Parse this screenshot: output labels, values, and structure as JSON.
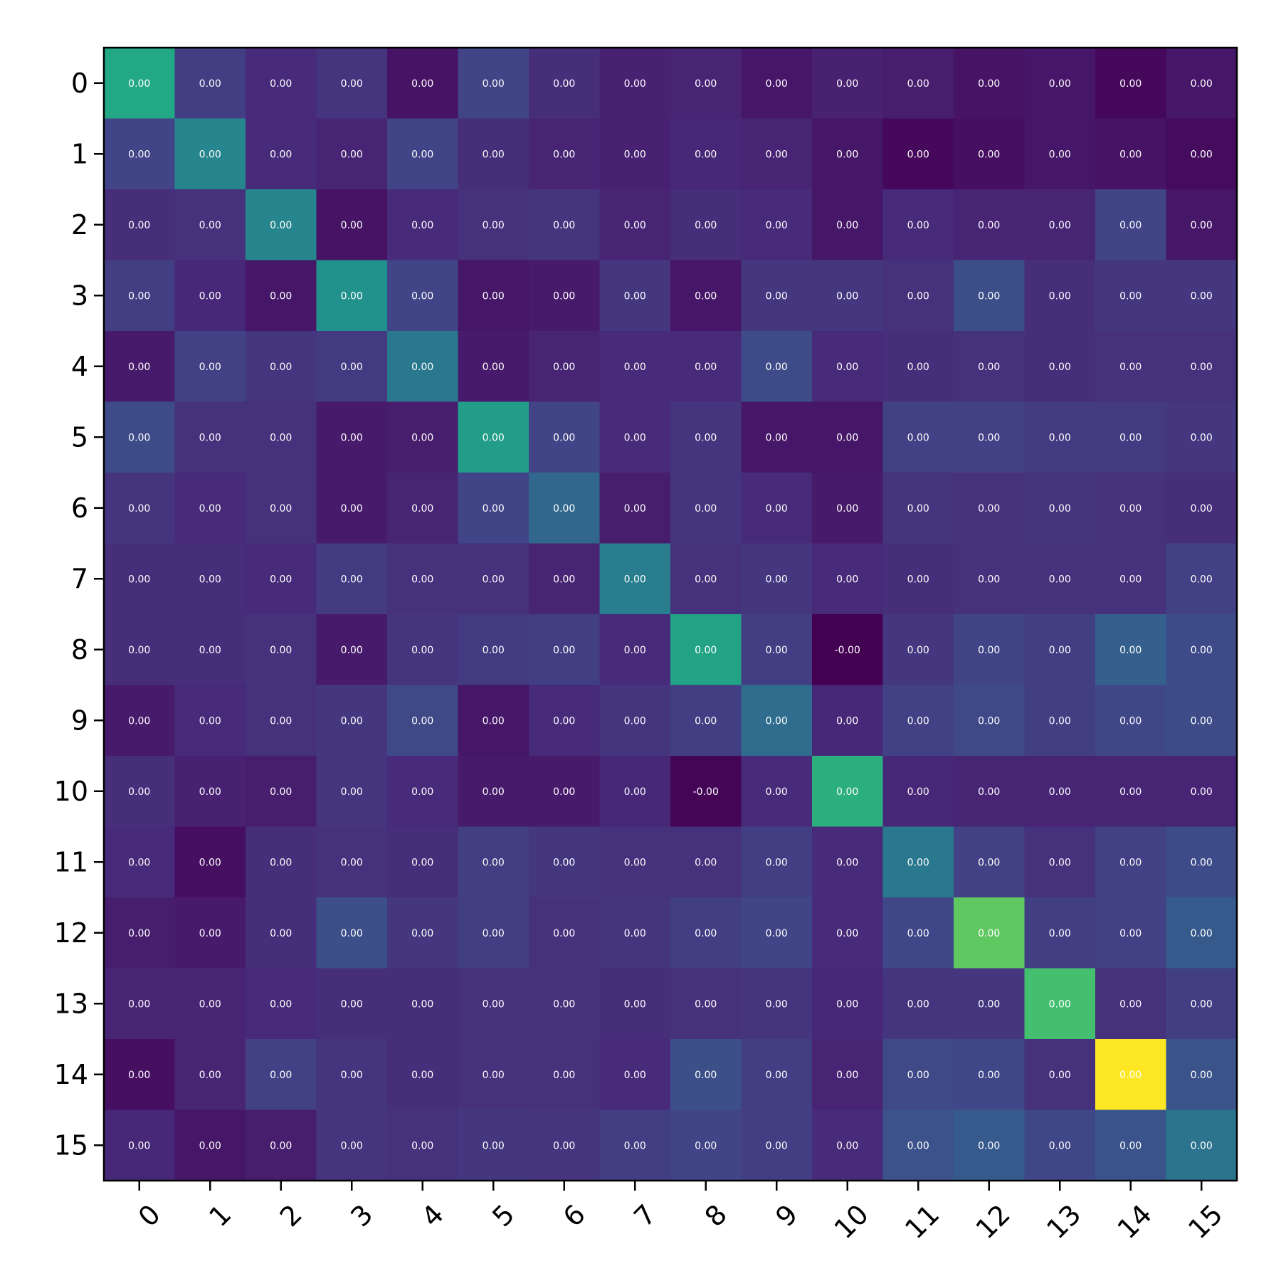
{
  "chart_data": {
    "type": "heatmap",
    "title": "",
    "xlabel": "",
    "ylabel": "",
    "colormap": "viridis",
    "grid": false,
    "legend": "none",
    "x_tick_labels": [
      "0",
      "1",
      "2",
      "3",
      "4",
      "5",
      "6",
      "7",
      "8",
      "9",
      "10",
      "11",
      "12",
      "13",
      "14",
      "15"
    ],
    "y_tick_labels": [
      "0",
      "1",
      "2",
      "3",
      "4",
      "5",
      "6",
      "7",
      "8",
      "9",
      "10",
      "11",
      "12",
      "13",
      "14",
      "15"
    ],
    "cell_text": [
      [
        "0.00",
        "0.00",
        "0.00",
        "0.00",
        "0.00",
        "0.00",
        "0.00",
        "0.00",
        "0.00",
        "0.00",
        "0.00",
        "0.00",
        "0.00",
        "0.00",
        "0.00",
        "0.00"
      ],
      [
        "0.00",
        "0.00",
        "0.00",
        "0.00",
        "0.00",
        "0.00",
        "0.00",
        "0.00",
        "0.00",
        "0.00",
        "0.00",
        "0.00",
        "0.00",
        "0.00",
        "0.00",
        "0.00"
      ],
      [
        "0.00",
        "0.00",
        "0.00",
        "0.00",
        "0.00",
        "0.00",
        "0.00",
        "0.00",
        "0.00",
        "0.00",
        "0.00",
        "0.00",
        "0.00",
        "0.00",
        "0.00",
        "0.00"
      ],
      [
        "0.00",
        "0.00",
        "0.00",
        "0.00",
        "0.00",
        "0.00",
        "0.00",
        "0.00",
        "0.00",
        "0.00",
        "0.00",
        "0.00",
        "0.00",
        "0.00",
        "0.00",
        "0.00"
      ],
      [
        "0.00",
        "0.00",
        "0.00",
        "0.00",
        "0.00",
        "0.00",
        "0.00",
        "0.00",
        "0.00",
        "0.00",
        "0.00",
        "0.00",
        "0.00",
        "0.00",
        "0.00",
        "0.00"
      ],
      [
        "0.00",
        "0.00",
        "0.00",
        "0.00",
        "0.00",
        "0.00",
        "0.00",
        "0.00",
        "0.00",
        "0.00",
        "0.00",
        "0.00",
        "0.00",
        "0.00",
        "0.00",
        "0.00"
      ],
      [
        "0.00",
        "0.00",
        "0.00",
        "0.00",
        "0.00",
        "0.00",
        "0.00",
        "0.00",
        "0.00",
        "0.00",
        "0.00",
        "0.00",
        "0.00",
        "0.00",
        "0.00",
        "0.00"
      ],
      [
        "0.00",
        "0.00",
        "0.00",
        "0.00",
        "0.00",
        "0.00",
        "0.00",
        "0.00",
        "0.00",
        "0.00",
        "0.00",
        "0.00",
        "0.00",
        "0.00",
        "0.00",
        "0.00"
      ],
      [
        "0.00",
        "0.00",
        "0.00",
        "0.00",
        "0.00",
        "0.00",
        "0.00",
        "0.00",
        "0.00",
        "0.00",
        "-0.00",
        "0.00",
        "0.00",
        "0.00",
        "0.00",
        "0.00"
      ],
      [
        "0.00",
        "0.00",
        "0.00",
        "0.00",
        "0.00",
        "0.00",
        "0.00",
        "0.00",
        "0.00",
        "0.00",
        "0.00",
        "0.00",
        "0.00",
        "0.00",
        "0.00",
        "0.00"
      ],
      [
        "0.00",
        "0.00",
        "0.00",
        "0.00",
        "0.00",
        "0.00",
        "0.00",
        "0.00",
        "-0.00",
        "0.00",
        "0.00",
        "0.00",
        "0.00",
        "0.00",
        "0.00",
        "0.00"
      ],
      [
        "0.00",
        "0.00",
        "0.00",
        "0.00",
        "0.00",
        "0.00",
        "0.00",
        "0.00",
        "0.00",
        "0.00",
        "0.00",
        "0.00",
        "0.00",
        "0.00",
        "0.00",
        "0.00"
      ],
      [
        "0.00",
        "0.00",
        "0.00",
        "0.00",
        "0.00",
        "0.00",
        "0.00",
        "0.00",
        "0.00",
        "0.00",
        "0.00",
        "0.00",
        "0.00",
        "0.00",
        "0.00",
        "0.00"
      ],
      [
        "0.00",
        "0.00",
        "0.00",
        "0.00",
        "0.00",
        "0.00",
        "0.00",
        "0.00",
        "0.00",
        "0.00",
        "0.00",
        "0.00",
        "0.00",
        "0.00",
        "0.00",
        "0.00"
      ],
      [
        "0.00",
        "0.00",
        "0.00",
        "0.00",
        "0.00",
        "0.00",
        "0.00",
        "0.00",
        "0.00",
        "0.00",
        "0.00",
        "0.00",
        "0.00",
        "0.00",
        "0.00",
        "0.00"
      ],
      [
        "0.00",
        "0.00",
        "0.00",
        "0.00",
        "0.00",
        "0.00",
        "0.00",
        "0.00",
        "0.00",
        "0.00",
        "0.00",
        "0.00",
        "0.00",
        "0.00",
        "0.00",
        "0.00"
      ]
    ],
    "relative_intensity": [
      [
        0.6,
        0.18,
        0.12,
        0.15,
        0.05,
        0.2,
        0.13,
        0.09,
        0.1,
        0.06,
        0.09,
        0.08,
        0.05,
        0.06,
        0.02,
        0.06
      ],
      [
        0.2,
        0.45,
        0.12,
        0.1,
        0.2,
        0.13,
        0.1,
        0.09,
        0.11,
        0.1,
        0.06,
        0.02,
        0.04,
        0.06,
        0.05,
        0.03
      ],
      [
        0.13,
        0.14,
        0.45,
        0.05,
        0.12,
        0.14,
        0.15,
        0.1,
        0.13,
        0.12,
        0.06,
        0.12,
        0.1,
        0.1,
        0.2,
        0.06
      ],
      [
        0.18,
        0.11,
        0.06,
        0.5,
        0.2,
        0.06,
        0.07,
        0.16,
        0.06,
        0.16,
        0.16,
        0.14,
        0.24,
        0.13,
        0.16,
        0.16
      ],
      [
        0.07,
        0.19,
        0.15,
        0.17,
        0.4,
        0.07,
        0.1,
        0.12,
        0.12,
        0.23,
        0.12,
        0.13,
        0.14,
        0.13,
        0.14,
        0.14
      ],
      [
        0.23,
        0.14,
        0.14,
        0.07,
        0.08,
        0.55,
        0.2,
        0.12,
        0.15,
        0.06,
        0.06,
        0.19,
        0.19,
        0.17,
        0.17,
        0.16
      ],
      [
        0.15,
        0.12,
        0.14,
        0.07,
        0.1,
        0.2,
        0.33,
        0.08,
        0.15,
        0.12,
        0.07,
        0.15,
        0.14,
        0.15,
        0.14,
        0.13
      ],
      [
        0.13,
        0.13,
        0.12,
        0.17,
        0.14,
        0.14,
        0.1,
        0.42,
        0.14,
        0.16,
        0.12,
        0.13,
        0.14,
        0.14,
        0.14,
        0.19
      ],
      [
        0.13,
        0.13,
        0.14,
        0.07,
        0.15,
        0.17,
        0.18,
        0.12,
        0.58,
        0.18,
        0.0,
        0.16,
        0.2,
        0.18,
        0.3,
        0.23
      ],
      [
        0.07,
        0.12,
        0.14,
        0.16,
        0.22,
        0.06,
        0.12,
        0.15,
        0.18,
        0.35,
        0.11,
        0.19,
        0.22,
        0.18,
        0.21,
        0.23
      ],
      [
        0.13,
        0.09,
        0.08,
        0.15,
        0.12,
        0.07,
        0.07,
        0.11,
        0.01,
        0.12,
        0.63,
        0.11,
        0.1,
        0.1,
        0.1,
        0.1
      ],
      [
        0.12,
        0.04,
        0.13,
        0.14,
        0.13,
        0.18,
        0.16,
        0.14,
        0.14,
        0.18,
        0.12,
        0.4,
        0.19,
        0.14,
        0.19,
        0.23
      ],
      [
        0.08,
        0.07,
        0.13,
        0.24,
        0.16,
        0.18,
        0.14,
        0.15,
        0.18,
        0.2,
        0.12,
        0.21,
        0.75,
        0.18,
        0.19,
        0.28
      ],
      [
        0.1,
        0.1,
        0.12,
        0.13,
        0.13,
        0.14,
        0.14,
        0.13,
        0.14,
        0.15,
        0.11,
        0.15,
        0.16,
        0.7,
        0.14,
        0.18
      ],
      [
        0.04,
        0.1,
        0.19,
        0.15,
        0.13,
        0.14,
        0.14,
        0.12,
        0.24,
        0.18,
        0.1,
        0.22,
        0.21,
        0.14,
        1.0,
        0.26
      ],
      [
        0.11,
        0.06,
        0.08,
        0.15,
        0.14,
        0.16,
        0.15,
        0.18,
        0.2,
        0.18,
        0.12,
        0.25,
        0.28,
        0.21,
        0.26,
        0.38
      ]
    ]
  }
}
